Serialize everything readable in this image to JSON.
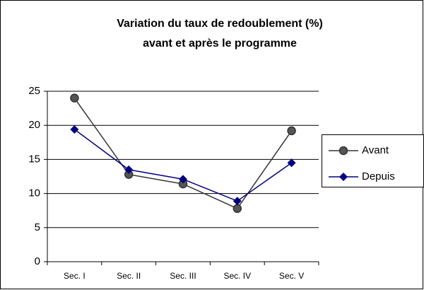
{
  "chart_data": {
    "type": "line",
    "title": "Variation du taux de redoublement (%)",
    "subtitle": "avant et après le programme",
    "categories": [
      "Sec. I",
      "Sec. II",
      "Sec. III",
      "Sec. IV",
      "Sec. V"
    ],
    "series": [
      {
        "name": "Avant",
        "color": "#333333",
        "marker": "circle",
        "values": [
          24,
          12.8,
          11.4,
          7.8,
          19.2
        ]
      },
      {
        "name": "Depuis",
        "color": "#000080",
        "marker": "diamond",
        "values": [
          19.4,
          13.5,
          12.1,
          8.9,
          14.5
        ]
      }
    ],
    "ylim": [
      0,
      25
    ],
    "yticks": [
      0,
      5,
      10,
      15,
      20,
      25
    ],
    "grid": true,
    "legend": "right"
  }
}
